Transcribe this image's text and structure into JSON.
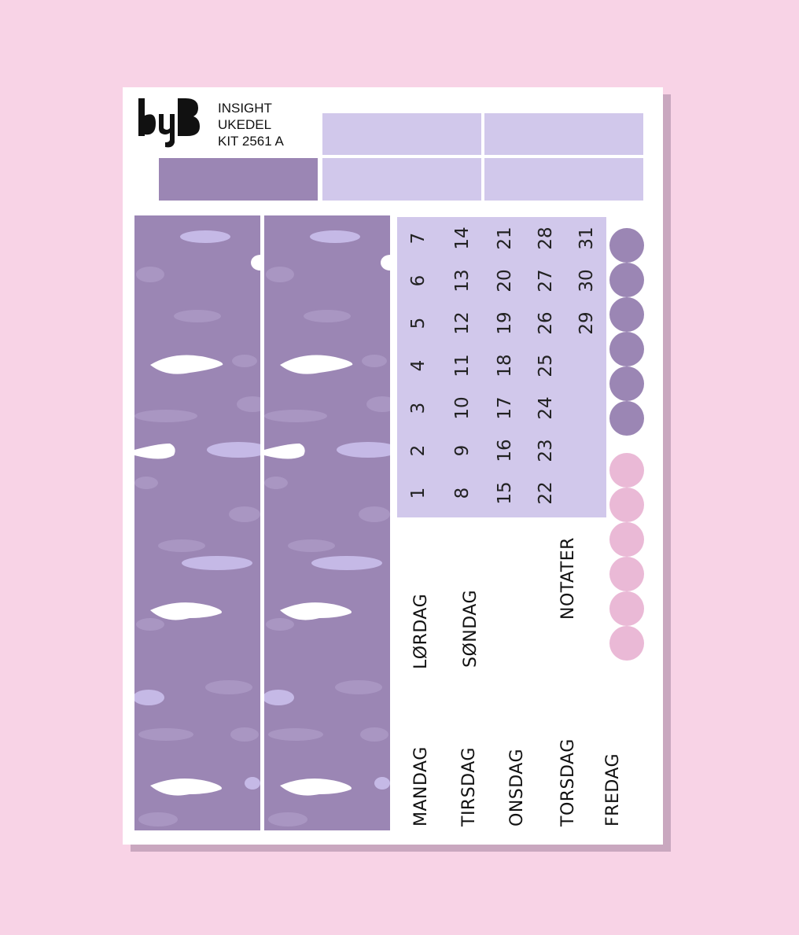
{
  "brand": {
    "logo_text": "byB"
  },
  "kit": {
    "line1": "INSIGHT",
    "line2": "UKEDEL",
    "line3": "KIT 2561 A"
  },
  "colors": {
    "background": "#f8d3e6",
    "sheet": "#ffffff",
    "purple": "#9b86b4",
    "lavender": "#d1c8eb",
    "pink": "#eab9d6",
    "shadow": "#c9a7bf"
  },
  "calendar": {
    "columns": [
      [
        "7",
        "6",
        "5",
        "4",
        "3",
        "2",
        "1"
      ],
      [
        "14",
        "13",
        "12",
        "11",
        "10",
        "9",
        "8"
      ],
      [
        "21",
        "20",
        "19",
        "18",
        "17",
        "16",
        "15"
      ],
      [
        "28",
        "27",
        "26",
        "25",
        "24",
        "23",
        "22"
      ],
      [
        "31",
        "30",
        "29",
        "",
        "",
        "",
        ""
      ]
    ]
  },
  "dots": {
    "purple_count": 6,
    "pink_count": 6
  },
  "labels": {
    "lordag": "LØRDAG",
    "sondag": "SØNDAG",
    "notater": "NOTATER",
    "mandag": "MANDAG",
    "tirsdag": "TIRSDAG",
    "onsdag": "ONSDAG",
    "torsdag": "TORSDAG",
    "fredag": "FREDAG"
  }
}
